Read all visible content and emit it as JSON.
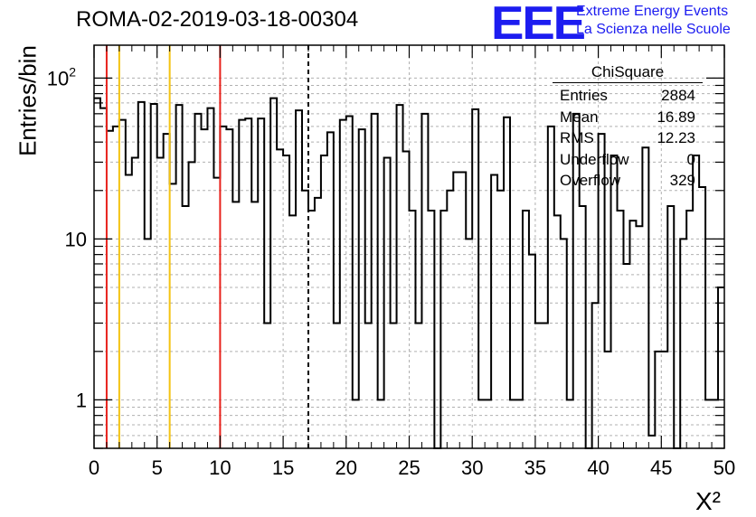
{
  "title": "ROMA-02-2019-03-18-00304",
  "logo": {
    "mark": "EEE",
    "line1": "Extreme Energy Events",
    "line2": "La Scienza nelle Scuole",
    "color": "#1c1cf0"
  },
  "stats_box": {
    "title": "ChiSquare",
    "rows": [
      {
        "label": "Entries",
        "value": "2884"
      },
      {
        "label": "Mean",
        "value": "16.89"
      },
      {
        "label": "RMS",
        "value": "12.23"
      },
      {
        "label": "Underflow",
        "value": "0"
      },
      {
        "label": "Overflow",
        "value": "329"
      }
    ]
  },
  "chart_data": {
    "type": "bar",
    "style": "step-histogram",
    "xlabel": "X²",
    "ylabel": "Entries/bin",
    "xlim": [
      0,
      50
    ],
    "ylim": [
      0.5,
      160
    ],
    "yscale": "log",
    "bin_width": 0.5,
    "grid": true,
    "x_ticks": [
      0,
      5,
      10,
      15,
      20,
      25,
      30,
      35,
      40,
      45,
      50
    ],
    "y_ticks": [
      {
        "value": 1,
        "label": "1"
      },
      {
        "value": 10,
        "label": "10"
      },
      {
        "value": 100,
        "label": "10",
        "exp": "2"
      }
    ],
    "values": [
      75,
      65,
      47,
      50,
      55,
      25,
      32,
      71,
      10,
      69,
      32,
      45,
      22,
      68,
      16,
      30,
      60,
      48,
      65,
      24,
      50,
      48,
      17,
      55,
      56,
      17,
      56,
      3,
      75,
      36,
      33,
      14,
      63,
      20,
      15,
      18,
      33,
      46,
      3,
      55,
      58,
      1,
      48,
      3,
      60,
      1,
      32,
      3,
      68,
      35,
      15,
      3,
      60,
      15,
      0,
      15,
      20,
      26,
      26,
      10,
      64,
      1,
      1,
      25,
      20,
      57,
      1,
      1,
      15,
      8,
      3,
      3,
      50,
      14,
      10,
      1,
      60,
      16,
      0,
      4,
      45,
      2,
      33,
      15,
      7,
      13,
      12,
      37,
      0.6,
      2,
      2,
      16,
      0.5,
      10,
      15,
      33,
      21,
      1,
      1,
      5
    ],
    "vlines": [
      {
        "x": 1,
        "color": "#e8221c",
        "style": "solid"
      },
      {
        "x": 2,
        "color": "#f4c311",
        "style": "solid"
      },
      {
        "x": 6,
        "color": "#f4c311",
        "style": "solid"
      },
      {
        "x": 10,
        "color": "#e8221c",
        "style": "solid"
      },
      {
        "x": 17,
        "color": "#000000",
        "style": "dashed"
      }
    ]
  }
}
